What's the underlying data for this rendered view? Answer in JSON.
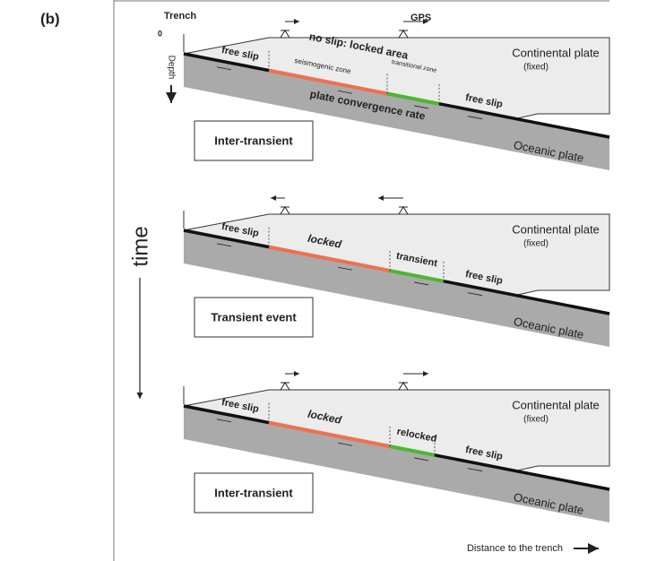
{
  "figure_label": "(b)",
  "time_label": "time",
  "x_axis_label": "Distance to the trench",
  "panels": [
    {
      "trench": "Trench",
      "depth_zero": "0",
      "depth": "Depth",
      "gps": "GPS",
      "locked_area": "no slip: locked area",
      "seismogenic": "seismogenic zone",
      "transitional": "transitional zone",
      "free_slip_updip": "free slip",
      "free_slip_downdip": "free slip",
      "convergence": "plate convergence rate",
      "continental": "Continental plate",
      "fixed": "(fixed)",
      "oceanic": "Oceanic plate",
      "state": "Inter-transient"
    },
    {
      "free_slip_updip": "free slip",
      "locked_zone": "locked",
      "transient_zone": "transient",
      "free_slip_downdip": "free slip",
      "continental": "Continental plate",
      "fixed": "(fixed)",
      "oceanic": "Oceanic plate",
      "state": "Transient event"
    },
    {
      "free_slip_updip": "free slip",
      "locked_zone": "locked",
      "transient_zone": "relocked",
      "free_slip_downdip": "free slip",
      "continental": "Continental plate",
      "fixed": "(fixed)",
      "oceanic": "Oceanic plate",
      "state": "Inter-transient"
    }
  ]
}
